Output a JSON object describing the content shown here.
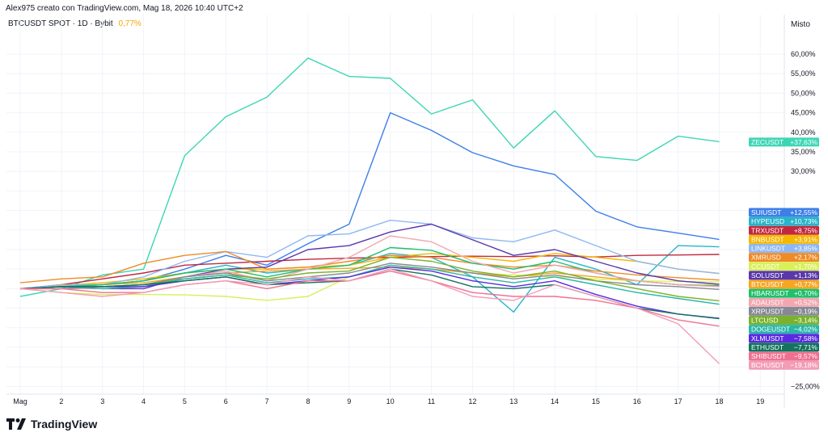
{
  "header": {
    "author_line": "Alex975 creato con TradingView.com, Mag 18, 2026 10:40 UTC+2",
    "symbol": "BTCUSDT SPOT · 1D · Bybit",
    "symbol_change": "0,77%",
    "scale_mode": "Misto"
  },
  "brand": {
    "name": "TradingView"
  },
  "chart_data": {
    "type": "line",
    "x": [
      "Mag",
      "2",
      "3",
      "4",
      "5",
      "6",
      "7",
      "8",
      "9",
      "10",
      "11",
      "12",
      "13",
      "14",
      "15",
      "16",
      "17",
      "18"
    ],
    "x_tick_labels": [
      "Mag",
      "2",
      "3",
      "4",
      "5",
      "6",
      "7",
      "8",
      "9",
      "10",
      "11",
      "12",
      "13",
      "14",
      "15",
      "16",
      "17",
      "18",
      "19"
    ],
    "ylim": [
      -27,
      66
    ],
    "y_ticks": [
      {
        "v": 60,
        "label": "60,00%"
      },
      {
        "v": 55,
        "label": "55,00%"
      },
      {
        "v": 50,
        "label": "50,00%"
      },
      {
        "v": 45,
        "label": "45,00%"
      },
      {
        "v": 40,
        "label": "40,00%"
      },
      {
        "v": 35,
        "label": "35,00%"
      },
      {
        "v": 30,
        "label": "30,00%"
      },
      {
        "v": -25,
        "label": "−25,00%"
      }
    ],
    "grid": true,
    "series": [
      {
        "name": "ZECUSDT",
        "change": "+37,63%",
        "color": "#3dd6b5",
        "tag_v": 37.5,
        "values": [
          -2,
          0,
          3.5,
          5,
          34,
          44,
          49,
          59,
          54.3,
          53.8,
          44.7,
          48.3,
          36,
          45.5,
          33.8,
          32.8,
          39,
          37.6
        ]
      },
      {
        "name": "SUIUSDT",
        "change": "+12,55%",
        "color": "#3d7fe8",
        "tag_v": 19.5,
        "values": [
          0,
          0.5,
          1,
          2,
          5,
          8.5,
          6,
          11.5,
          16.5,
          45,
          40.5,
          34.8,
          31.4,
          29.2,
          19.8,
          15.8,
          14.2,
          12.6
        ]
      },
      {
        "name": "HYPEUSD",
        "change": "+10,73%",
        "color": "#26b5c9",
        "tag_v": 17.2,
        "values": [
          0,
          0.5,
          1,
          2,
          4,
          6,
          4,
          5,
          6,
          9,
          8,
          3,
          -6,
          8,
          5,
          1,
          11,
          10.7
        ]
      },
      {
        "name": "TRXUSDT",
        "change": "+8,75%",
        "color": "#c2293f",
        "tag_v": 14.9,
        "values": [
          0,
          1,
          2.5,
          4,
          6,
          6.5,
          7,
          7.5,
          7.8,
          8,
          8.2,
          8.3,
          8.2,
          8.4,
          8.1,
          8.5,
          8.6,
          8.75
        ]
      },
      {
        "name": "BNBUSDT",
        "change": "+3,91%",
        "color": "#f5b700",
        "tag_v": 12.6,
        "values": [
          0,
          0.8,
          1.5,
          2.5,
          4,
          5,
          5,
          5.5,
          6,
          8,
          9,
          8,
          7,
          9,
          8,
          7,
          5,
          3.9
        ]
      },
      {
        "name": "LINKUSDT",
        "change": "+3,85%",
        "color": "#8fb8f2",
        "tag_v": 10.3,
        "values": [
          0,
          1,
          1,
          3,
          7,
          9.5,
          8,
          13.5,
          14,
          17.5,
          16.5,
          13,
          12,
          15,
          11,
          7,
          5,
          3.85
        ]
      },
      {
        "name": "XMRUSD",
        "change": "+2,17%",
        "color": "#f08a24",
        "tag_v": 8.0,
        "values": [
          1.5,
          2.5,
          3,
          6.5,
          8.5,
          9.5,
          5,
          5.5,
          7,
          8.5,
          8,
          6.5,
          5.5,
          6,
          4.5,
          3.5,
          2.8,
          2.2
        ]
      },
      {
        "name": "CCUSDT",
        "change": "+1,70%",
        "color": "#d9f05a",
        "tag_v": 5.7,
        "values": [
          0,
          -1,
          -1.5,
          -1.5,
          -1.6,
          -2,
          -3,
          -2,
          3,
          6,
          5,
          4,
          3.5,
          3,
          2.5,
          2,
          1.8,
          1.7
        ]
      },
      {
        "name": "SOLUSDT",
        "change": "+1,13%",
        "color": "#5a38ab",
        "tag_v": 3.4,
        "values": [
          0,
          0.5,
          0,
          0,
          3,
          5,
          5.5,
          10,
          11,
          14.5,
          16.5,
          12.5,
          8.5,
          10,
          7,
          4,
          2,
          1.1
        ]
      },
      {
        "name": "BTCUSDT",
        "change": "+0,77%",
        "color": "#f5a623",
        "tag_v": 1.1,
        "values": [
          0,
          0.5,
          1,
          1.5,
          3,
          4,
          4.5,
          5,
          5.2,
          5.5,
          5,
          4,
          3,
          4,
          3,
          2,
          1,
          0.77
        ]
      },
      {
        "name": "HBARUSDT",
        "change": "+0,70%",
        "color": "#1fbf6b",
        "tag_v": -1.2,
        "values": [
          0,
          0.5,
          1,
          2,
          4,
          5,
          3,
          5,
          6,
          10.5,
          9.8,
          6.5,
          5,
          7,
          4,
          2,
          1,
          0.7
        ]
      },
      {
        "name": "ADAUSDT",
        "change": "+0,52%",
        "color": "#f2a7b0",
        "tag_v": -3.5,
        "values": [
          0,
          0,
          0,
          0.5,
          3,
          4.5,
          2,
          5,
          8,
          13.5,
          12,
          7,
          4,
          6,
          4,
          2,
          1,
          0.5
        ]
      },
      {
        "name": "XRPUSDT",
        "change": "−0,19%",
        "color": "#868993",
        "tag_v": -5.8,
        "values": [
          0,
          0,
          0.5,
          1,
          3,
          4,
          2,
          3,
          4,
          6.5,
          5.5,
          4,
          2.5,
          3.5,
          2,
          1,
          0.5,
          -0.19
        ]
      },
      {
        "name": "LTCUSD",
        "change": "−3,14%",
        "color": "#7ab22f",
        "tag_v": -8.1,
        "values": [
          0,
          0.5,
          0.5,
          1,
          2.5,
          3.5,
          2.5,
          4,
          4.5,
          8,
          7,
          4.5,
          3,
          4.5,
          2,
          0,
          -2,
          -3.1
        ]
      },
      {
        "name": "DOGEUSDT",
        "change": "−4,02%",
        "color": "#29b7a8",
        "tag_v": -10.4,
        "values": [
          0,
          0.5,
          0,
          0.5,
          2.5,
          3.5,
          1.5,
          2.5,
          3,
          6,
          5,
          3,
          1.5,
          3,
          1,
          -1,
          -2.5,
          -4.0
        ]
      },
      {
        "name": "XLMUSDT",
        "change": "−7,58%",
        "color": "#5a2be0",
        "tag_v": -12.7,
        "values": [
          0,
          0.5,
          0.5,
          0.5,
          2,
          3,
          1,
          2,
          3,
          5.5,
          4.5,
          2,
          0.5,
          2,
          -1.5,
          -4.5,
          -6.5,
          -7.6
        ]
      },
      {
        "name": "ETHUSDT",
        "change": "−7,71%",
        "color": "#12735e",
        "tag_v": -15.0,
        "values": [
          0,
          0.5,
          0.5,
          1,
          2,
          3,
          1,
          1.5,
          2,
          5,
          3.5,
          0.5,
          0,
          1,
          -2,
          -5,
          -6.5,
          -7.7
        ]
      },
      {
        "name": "SHIBUSDT",
        "change": "−9,57%",
        "color": "#f0708f",
        "tag_v": -17.3,
        "values": [
          0,
          0,
          -1,
          -1,
          1,
          2,
          0,
          2,
          2,
          4.5,
          2,
          -1,
          -2,
          -2,
          -3,
          -5,
          -8,
          -9.6
        ]
      },
      {
        "name": "BCHUSDT",
        "change": "−19,18%",
        "color": "#f29cb6",
        "tag_v": -19.6,
        "values": [
          0,
          -1,
          -2,
          -1,
          1,
          2,
          1,
          3,
          2,
          5,
          2,
          -2,
          -3,
          1,
          -2,
          -5,
          -9,
          -19.2
        ]
      }
    ]
  }
}
